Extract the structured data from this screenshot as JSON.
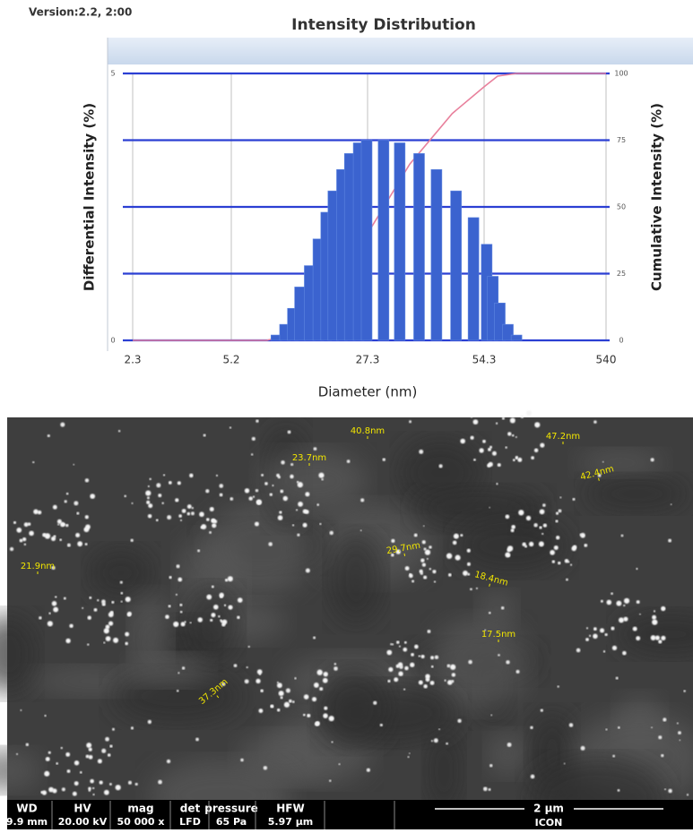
{
  "chart_data": {
    "type": "histogram-cumulative",
    "header_text": "Version:2.2, 2:00",
    "title": "Intensity Distribution",
    "x_label": "Diameter (nm)",
    "y_label": "Differential Intensity (%)",
    "y2_label": "Cumulative Intensity (%)",
    "xticks": [
      2.3,
      5.2,
      27.3,
      54.3,
      540
    ],
    "log_x": true,
    "ylim": [
      0,
      5
    ],
    "yticks": [
      0,
      5
    ],
    "y2lim": [
      0,
      100
    ],
    "y2ticks": [
      0,
      25,
      50,
      75,
      100
    ],
    "grid": true,
    "series": [
      {
        "type": "bar",
        "color": "#3b63cf",
        "x": [
          9,
          10,
          11,
          12,
          13.5,
          15,
          16.5,
          18,
          20,
          22,
          24.5,
          27,
          30,
          33,
          37,
          41,
          46,
          51,
          57,
          64,
          73,
          85,
          100
        ],
        "values": [
          0.1,
          0.3,
          0.6,
          1.0,
          1.4,
          1.9,
          2.4,
          2.8,
          3.2,
          3.5,
          3.7,
          3.75,
          3.75,
          3.7,
          3.5,
          3.2,
          2.8,
          2.3,
          1.8,
          1.2,
          0.7,
          0.3,
          0.1
        ]
      },
      {
        "type": "line",
        "axis": "y2",
        "color": "#e8809c",
        "x": [
          2.3,
          8,
          12,
          18,
          27.3,
          35,
          45,
          54.3,
          70,
          100,
          540
        ],
        "values": [
          0,
          0,
          3,
          15,
          40,
          66,
          85,
          95,
          99,
          100,
          100
        ]
      }
    ]
  },
  "sem_image": {
    "labels": [
      "40.8nm",
      "47.2nm",
      "23.7nm",
      "42.4nm",
      "21.9nm",
      "29.7nm",
      "18.4nm",
      "17.5nm",
      "37.3nm"
    ],
    "info_headers": [
      "WD",
      "HV",
      "mag",
      "det",
      "pressure",
      "HFW"
    ],
    "info_values": [
      "9.9 mm",
      "20.00 kV",
      "50 000 x",
      "LFD",
      "65 Pa",
      "5.97 µm"
    ],
    "scale_bar": "2 µm",
    "institution": "ICON"
  }
}
